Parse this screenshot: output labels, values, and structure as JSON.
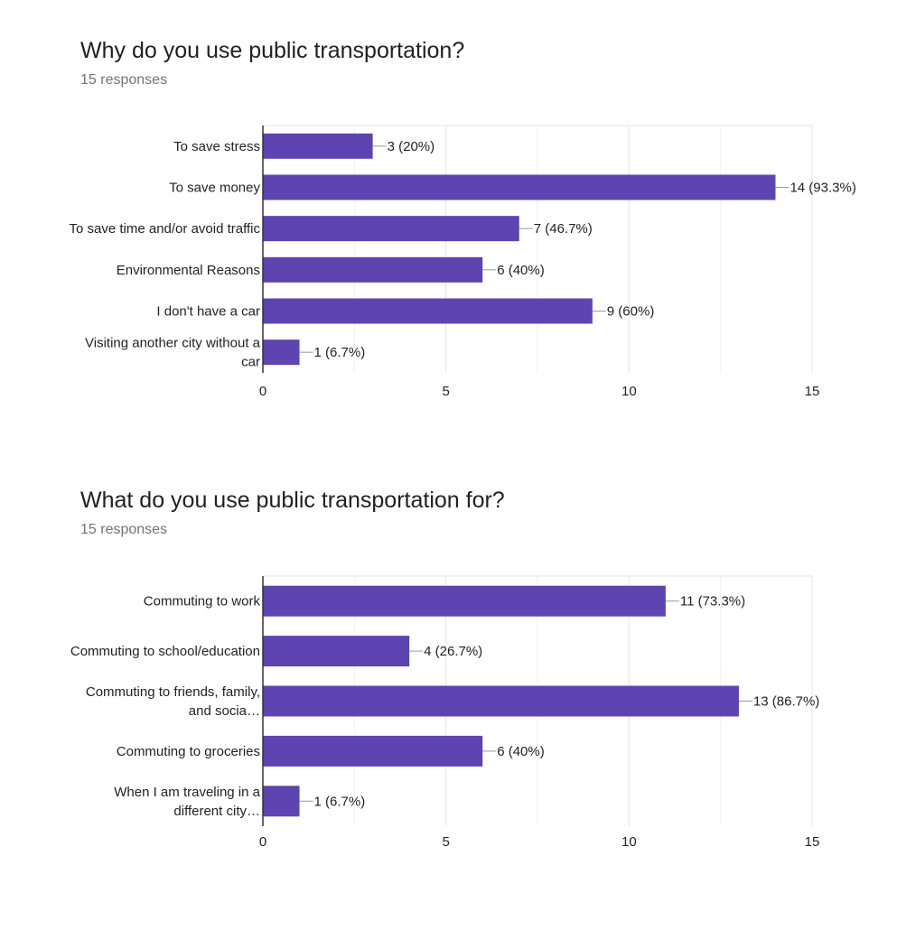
{
  "charts": [
    {
      "title": "Why do you use public transportation?",
      "subtitle": "15 responses",
      "chart_data": {
        "type": "bar",
        "orientation": "horizontal",
        "categories": [
          "To save stress",
          "To save money",
          "To save time and/or avoid traffic",
          "Environmental Reasons",
          "I don't have a car",
          "Visiting another city without a car"
        ],
        "category_lines": [
          [
            "To save stress"
          ],
          [
            "To save money"
          ],
          [
            "To save time and/or avoid traffic"
          ],
          [
            "Environmental Reasons"
          ],
          [
            "I don't have a car"
          ],
          [
            "Visiting another city without a",
            "car"
          ]
        ],
        "values": [
          3,
          14,
          7,
          6,
          9,
          1
        ],
        "value_labels": [
          "3 (20%)",
          "14 (93.3%)",
          "7 (46.7%)",
          "6 (40%)",
          "9 (60%)",
          "1 (6.7%)"
        ],
        "xlim": [
          0,
          15
        ],
        "xticks": [
          "0",
          "5",
          "10",
          "15"
        ],
        "grid": true,
        "color": "#5e44b0"
      }
    },
    {
      "title": "What do you use public transportation for?",
      "subtitle": "15 responses",
      "chart_data": {
        "type": "bar",
        "orientation": "horizontal",
        "categories": [
          "Commuting to work",
          "Commuting to school/education",
          "Commuting to friends, family, and socia…",
          "Commuting to groceries",
          "When I am traveling in a different city…"
        ],
        "category_lines": [
          [
            "Commuting to work"
          ],
          [
            "Commuting to school/education"
          ],
          [
            "Commuting to friends, family,",
            "and socia…"
          ],
          [
            "Commuting to groceries"
          ],
          [
            "When I am traveling in a",
            "different city…"
          ]
        ],
        "values": [
          11,
          4,
          13,
          6,
          1
        ],
        "value_labels": [
          "11 (73.3%)",
          "4 (26.7%)",
          "13 (86.7%)",
          "6 (40%)",
          "1 (6.7%)"
        ],
        "xlim": [
          0,
          15
        ],
        "xticks": [
          "0",
          "5",
          "10",
          "15"
        ],
        "grid": true,
        "color": "#5e44b0"
      }
    }
  ]
}
